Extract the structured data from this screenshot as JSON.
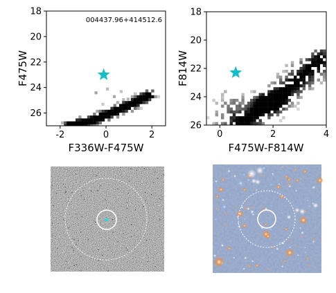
{
  "chart_data": [
    {
      "type": "scatter",
      "subtype": "density-cmd",
      "xlabel": "F336W-F475W",
      "ylabel": "F475W",
      "xlim": [
        -2.6,
        2.6
      ],
      "ylim": [
        27,
        18
      ],
      "y_inverted": true,
      "xticks": [
        -2,
        0,
        2
      ],
      "yticks": [
        18,
        20,
        22,
        24,
        26
      ],
      "annotation": "004437.96+414512.6",
      "star_marker": {
        "x": -0.1,
        "y": 23.0,
        "color": "#13bfc4"
      },
      "density": {
        "description": "diagonal red giant branch band",
        "ridge": [
          [
            -1.6,
            27.0
          ],
          [
            -0.6,
            26.6
          ],
          [
            0.2,
            26.0
          ],
          [
            1.0,
            25.4
          ],
          [
            1.9,
            24.6
          ]
        ],
        "diffuse_points": [
          [
            -0.5,
            24.3
          ],
          [
            0.0,
            24.0
          ],
          [
            0.3,
            24.6
          ],
          [
            0.6,
            24.2
          ],
          [
            -0.2,
            25.2
          ],
          [
            0.9,
            24.8
          ]
        ]
      }
    },
    {
      "type": "scatter",
      "subtype": "density-cmd",
      "xlabel": "F475W-F814W",
      "ylabel": "F814W",
      "xlim": [
        -0.5,
        4.0
      ],
      "ylim": [
        26,
        18
      ],
      "y_inverted": true,
      "xticks": [
        0,
        2,
        4
      ],
      "yticks": [
        18,
        20,
        22,
        24,
        26
      ],
      "star_marker": {
        "x": 0.6,
        "y": 22.3,
        "color": "#13bfc4"
      },
      "density": {
        "description": "red giant branch with dense red clump near (1.9, 24.4)",
        "ridge": [
          [
            0.9,
            25.9
          ],
          [
            1.5,
            25.0
          ],
          [
            2.0,
            24.3
          ],
          [
            2.6,
            23.4
          ],
          [
            3.2,
            22.4
          ],
          [
            3.8,
            21.4
          ]
        ],
        "blue_plume": [
          [
            0.0,
            25.5
          ],
          [
            0.2,
            24.8
          ],
          [
            0.5,
            24.2
          ],
          [
            0.3,
            25.8
          ]
        ],
        "clump": [
          1.9,
          24.4
        ]
      }
    }
  ],
  "images": [
    {
      "name": "residual-image",
      "description": "grey difference image with two concentric circles around target"
    },
    {
      "name": "color-image",
      "description": "color stellar field image with two concentric circles around target"
    }
  ]
}
